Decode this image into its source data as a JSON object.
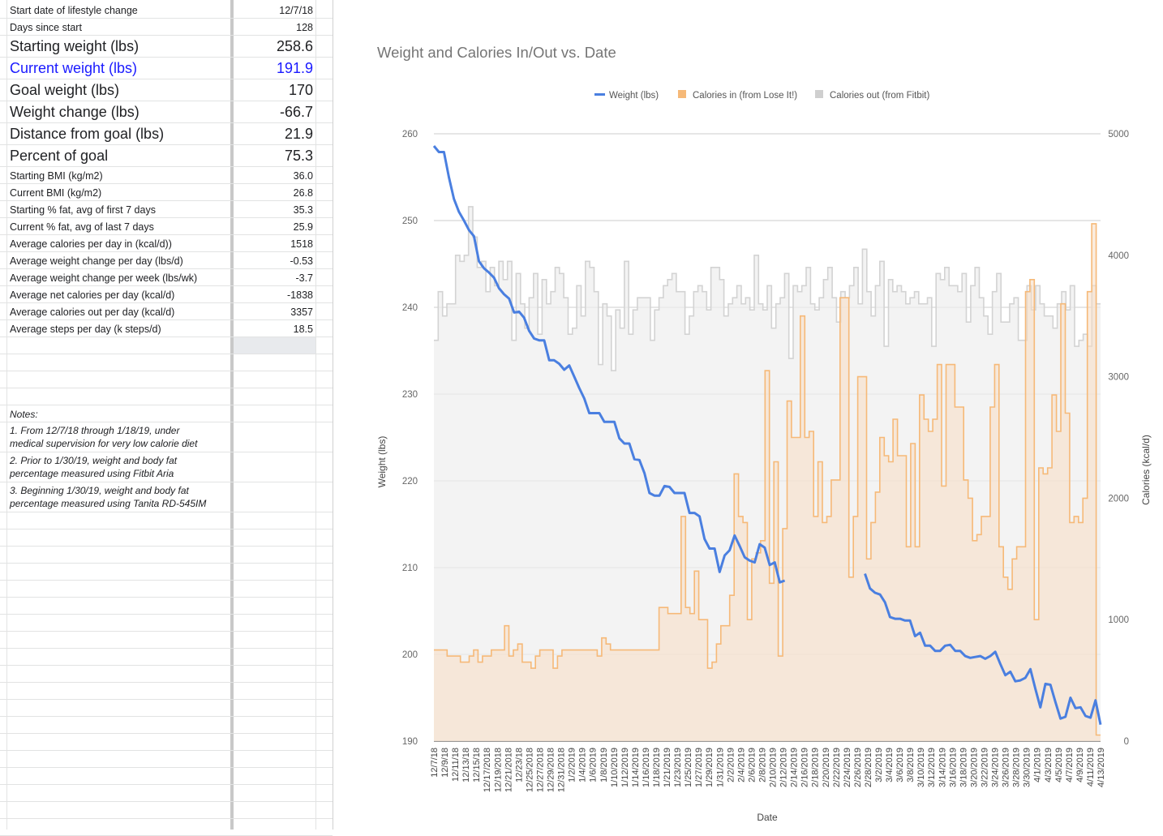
{
  "sheet": {
    "rows": [
      {
        "label": "Start date of lifestyle change",
        "value": "12/7/18",
        "size": "small"
      },
      {
        "label": "Days since start",
        "value": "128",
        "size": "small"
      },
      {
        "label": "Starting weight (lbs)",
        "value": "258.6",
        "size": "big"
      },
      {
        "label": "Current weight (lbs)",
        "value": "191.9",
        "size": "big",
        "color": "blue"
      },
      {
        "label": "Goal weight (lbs)",
        "value": "170",
        "size": "big"
      },
      {
        "label": "Weight change (lbs)",
        "value": "-66.7",
        "size": "big"
      },
      {
        "label": "Distance from goal (lbs)",
        "value": "21.9",
        "size": "big"
      },
      {
        "label": "Percent of goal",
        "value": "75.3",
        "size": "big"
      },
      {
        "label": "Starting BMI (kg/m2)",
        "value": "36.0",
        "size": "small"
      },
      {
        "label": "Current BMI (kg/m2)",
        "value": "26.8",
        "size": "small"
      },
      {
        "label": "Starting % fat, avg of first 7 days",
        "value": "35.3",
        "size": "small"
      },
      {
        "label": "Current % fat, avg of last 7 days",
        "value": "25.9",
        "size": "small"
      },
      {
        "label": "Average calories per day in (kcal/d))",
        "value": "1518",
        "size": "small"
      },
      {
        "label": "Average weight change per day (lbs/d)",
        "value": "-0.53",
        "size": "small"
      },
      {
        "label": "Average weight change per week (lbs/wk)",
        "value": "-3.7",
        "size": "small"
      },
      {
        "label": "Average net calories per day (kcal/d)",
        "value": "-1838",
        "size": "small"
      },
      {
        "label": "Average calories out per day (kcal/d)",
        "value": "3357",
        "size": "small"
      },
      {
        "label": "Average steps per day (k steps/d)",
        "value": "18.5",
        "size": "small"
      }
    ],
    "notes_title": "Notes:",
    "notes": [
      [
        "1. From 12/7/18 through 1/18/19, under",
        "medical supervision for very low calorie diet"
      ],
      [
        "2. Prior to 1/30/19, weight and body fat",
        "percentage measured using Fitbit Aria"
      ],
      [
        "3. Beginning 1/30/19, weight and body fat",
        "percentage measured using Tanita RD-545IM"
      ]
    ]
  },
  "chart_data": {
    "type": "line",
    "title": "Weight and Calories In/Out vs. Date",
    "xlabel": "Date",
    "ylabel": "Weight (lbs)",
    "y2label": "Calories (kcal/d)",
    "ylim": [
      190,
      260
    ],
    "y2lim": [
      0,
      5000
    ],
    "yticks": [
      "190",
      "200",
      "210",
      "220",
      "230",
      "240",
      "250",
      "260"
    ],
    "y2ticks": [
      "0",
      "1000",
      "2000",
      "3000",
      "4000",
      "5000"
    ],
    "grid": true,
    "legend_position": "top",
    "colors": {
      "weight": "#4a7fe0",
      "cal_in": "#f6b978",
      "cal_out": "#cfcfcf"
    },
    "x_tick_labels": [
      "12/7/18",
      "12/9/18",
      "12/11/18",
      "12/13/18",
      "12/15/18",
      "12/17/2018",
      "12/19/2018",
      "12/21/2018",
      "12/23/18",
      "12/25/2018",
      "12/27/2018",
      "12/29/2018",
      "12/31/2018",
      "1/2/2019",
      "1/4/2019",
      "1/6/2019",
      "1/8/2019",
      "1/10/2019",
      "1/12/2019",
      "1/14/2019",
      "1/16/2019",
      "1/18/2019",
      "1/21/2019",
      "1/23/2019",
      "1/25/2019",
      "1/27/2019",
      "1/29/2019",
      "1/31/2019",
      "2/2/2019",
      "2/4/2019",
      "2/6/2019",
      "2/8/2019",
      "2/10/2019",
      "2/12/2019",
      "2/14/2019",
      "2/16/2019",
      "2/18/2019",
      "2/20/2019",
      "2/22/2019",
      "2/24/2019",
      "2/26/2019",
      "2/28/2019",
      "3/2/2019",
      "3/4/2019",
      "3/6/2019",
      "3/8/2019",
      "3/10/2019",
      "3/12/2019",
      "3/14/2019",
      "3/16/2019",
      "3/18/2019",
      "3/20/2019",
      "3/22/2019",
      "3/24/2019",
      "3/26/2019",
      "3/28/2019",
      "3/30/2019",
      "4/1/2019",
      "4/3/2019",
      "4/5/2019",
      "4/7/2019",
      "4/9/2019",
      "4/11/2019",
      "4/13/2019"
    ],
    "series": [
      {
        "name": "Weight (lbs)",
        "axis": "left",
        "style": "line",
        "values": [
          258.6,
          257.9,
          257.9,
          255.0,
          252.5,
          251.0,
          250.0,
          248.9,
          248.2,
          245.3,
          244.5,
          244.0,
          243.4,
          242.2,
          241.5,
          241.0,
          239.4,
          239.5,
          238.8,
          237.3,
          236.4,
          236.2,
          236.2,
          233.9,
          233.9,
          233.5,
          232.8,
          233.3,
          232.0,
          230.7,
          229.5,
          227.8,
          227.8,
          227.8,
          226.8,
          226.8,
          226.8,
          224.9,
          224.3,
          224.3,
          222.5,
          222.4,
          220.9,
          218.6,
          218.3,
          218.3,
          219.4,
          219.3,
          218.6,
          218.6,
          218.6,
          216.3,
          216.3,
          215.9,
          213.3,
          212.2,
          212.2,
          209.5,
          211.4,
          212.0,
          213.7,
          212.5,
          211.2,
          210.8,
          210.6,
          212.7,
          212.3,
          210.3,
          210.6,
          208.3,
          208.5,
          null,
          null,
          null,
          null,
          null,
          null,
          null,
          null,
          null,
          null,
          null,
          null,
          null,
          null,
          null,
          209.3,
          207.6,
          207.1,
          206.9,
          206.0,
          204.3,
          204.1,
          204.1,
          203.9,
          203.9,
          202.1,
          202.5,
          201.0,
          201.0,
          200.4,
          200.4,
          201.0,
          201.1,
          200.4,
          200.4,
          199.8,
          199.6,
          199.7,
          199.8,
          199.5,
          199.8,
          200.3,
          198.9,
          197.6,
          198.0,
          196.9,
          197.0,
          197.3,
          198.3,
          196.0,
          193.9,
          196.6,
          196.5,
          194.5,
          192.6,
          192.8,
          195.0,
          193.8,
          193.9,
          192.9,
          192.7,
          194.7,
          191.9
        ]
      },
      {
        "name": "Calories in (from Lose It!)",
        "axis": "right",
        "style": "stepped-area",
        "values": [
          750,
          750,
          750,
          700,
          700,
          700,
          650,
          650,
          700,
          750,
          650,
          700,
          700,
          750,
          750,
          750,
          950,
          700,
          750,
          800,
          650,
          650,
          600,
          700,
          750,
          750,
          750,
          600,
          700,
          750,
          750,
          750,
          750,
          750,
          750,
          750,
          750,
          700,
          850,
          800,
          750,
          750,
          750,
          750,
          750,
          750,
          750,
          750,
          750,
          750,
          750,
          1100,
          1100,
          1050,
          1050,
          1050,
          1850,
          1100,
          1050,
          1400,
          1000,
          1000,
          600,
          650,
          800,
          950,
          950,
          1200,
          2200,
          1850,
          1800,
          1000,
          1500,
          1550,
          1650,
          3050,
          1300,
          2300,
          700,
          1750,
          2800,
          2500,
          2500,
          3500,
          2500,
          2550,
          1850,
          2300,
          1800,
          1850,
          2150,
          2150,
          3650,
          3650,
          1350,
          1850,
          3000,
          3000,
          1500,
          1800,
          2050,
          2500,
          2350,
          2300,
          2650,
          2350,
          2350,
          1600,
          2450,
          1600,
          2850,
          2650,
          2550,
          2650,
          3100,
          2100,
          3100,
          3100,
          2750,
          2750,
          2150,
          2000,
          1650,
          1700,
          1850,
          1850,
          2750,
          3100,
          1600,
          1350,
          1250,
          1500,
          1600,
          1600,
          3700,
          3800,
          1000,
          2250,
          2200,
          2250,
          2850,
          2550,
          3600,
          2700,
          1800,
          1850,
          1800,
          2000,
          3700,
          4260,
          50
        ]
      },
      {
        "name": "Calories out (from Fitbit)",
        "axis": "right",
        "style": "stepped-area",
        "values": [
          3300,
          3700,
          3500,
          3600,
          3600,
          4000,
          3950,
          4000,
          4400,
          4150,
          3900,
          3950,
          3700,
          3900,
          3750,
          3950,
          3800,
          3950,
          3300,
          3850,
          3600,
          3400,
          3650,
          3850,
          3350,
          3800,
          3600,
          3700,
          3900,
          3850,
          3650,
          3350,
          3400,
          3750,
          3500,
          3950,
          3900,
          3700,
          3100,
          3600,
          3500,
          3050,
          3550,
          3400,
          3950,
          3350,
          3550,
          3650,
          3650,
          3650,
          3300,
          3550,
          3650,
          3750,
          3800,
          3850,
          3700,
          3700,
          3350,
          3500,
          3700,
          3750,
          3700,
          3550,
          3900,
          3900,
          3800,
          3500,
          3600,
          3650,
          3750,
          3600,
          3650,
          3550,
          4000,
          3600,
          3550,
          3750,
          3400,
          3600,
          3650,
          3850,
          3150,
          3750,
          3700,
          3750,
          3900,
          3600,
          3550,
          3650,
          3800,
          3900,
          3650,
          3450,
          3700,
          3650,
          3750,
          3900,
          3600,
          4050,
          3700,
          3500,
          3750,
          3950,
          3250,
          3800,
          3700,
          3750,
          3700,
          3600,
          3650,
          3700,
          3600,
          3600,
          3650,
          3250,
          3850,
          3800,
          3900,
          3750,
          3750,
          3700,
          3850,
          3450,
          3750,
          3900,
          3650,
          3500,
          3350,
          3700,
          3850,
          3450,
          3450,
          3600,
          3650,
          3300,
          3300,
          3750,
          3550,
          3750,
          3600,
          3500,
          3500,
          3400,
          3600,
          3700,
          3550,
          3750,
          3250,
          3300,
          3350,
          3250,
          3750,
          3600
        ]
      }
    ]
  }
}
